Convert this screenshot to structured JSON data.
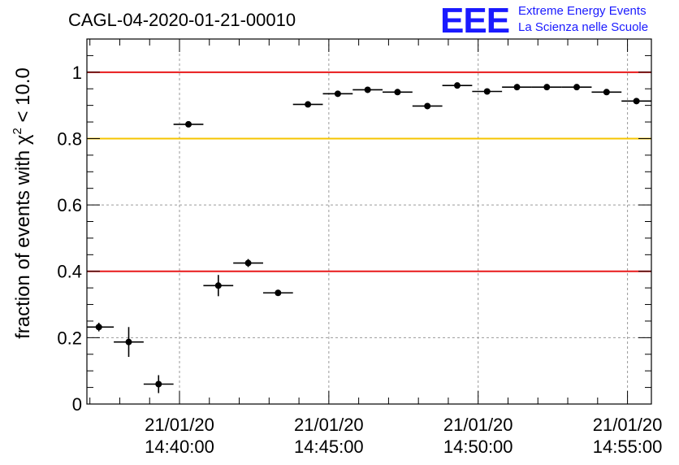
{
  "chart_data": {
    "type": "scatter",
    "title": "CAGL-04-2020-01-21-00010",
    "ylabel_main": "fraction of events with χ",
    "ylabel_sup": "2",
    "ylabel_tail": " < 10.0",
    "xlabel": "",
    "ylim": [
      0,
      1.1
    ],
    "yticks": [
      "0",
      "0.2",
      "0.4",
      "0.6",
      "0.8",
      "1"
    ],
    "ytick_values": [
      0,
      0.2,
      0.4,
      0.6,
      0.8,
      1.0
    ],
    "xticks": [
      {
        "date": "21/01/20",
        "time": "14:40:00"
      },
      {
        "date": "21/01/20",
        "time": "14:45:00"
      },
      {
        "date": "21/01/20",
        "time": "14:50:00"
      },
      {
        "date": "21/01/20",
        "time": "14:55:00"
      }
    ],
    "xtick_minutes": [
      40,
      45,
      50,
      55
    ],
    "xlim_minutes": [
      36.9,
      55.8
    ],
    "grid": true,
    "reference_lines": [
      {
        "y": 1.0,
        "color": "#e8191a"
      },
      {
        "y": 0.8,
        "color": "#f5c400"
      },
      {
        "y": 0.4,
        "color": "#e8191a"
      }
    ],
    "points": [
      {
        "x": 37.3,
        "y": 0.232,
        "xerr": 0.5,
        "yerr": 0.013
      },
      {
        "x": 38.3,
        "y": 0.187,
        "xerr": 0.5,
        "yerr": 0.045
      },
      {
        "x": 39.3,
        "y": 0.06,
        "xerr": 0.5,
        "yerr": 0.027
      },
      {
        "x": 40.3,
        "y": 0.843,
        "xerr": 0.5,
        "yerr": 0.007
      },
      {
        "x": 41.3,
        "y": 0.357,
        "xerr": 0.5,
        "yerr": 0.032
      },
      {
        "x": 42.3,
        "y": 0.425,
        "xerr": 0.5,
        "yerr": 0.012
      },
      {
        "x": 43.3,
        "y": 0.335,
        "xerr": 0.5,
        "yerr": 0.006
      },
      {
        "x": 44.3,
        "y": 0.903,
        "xerr": 0.5,
        "yerr": 0.006
      },
      {
        "x": 45.3,
        "y": 0.935,
        "xerr": 0.5,
        "yerr": 0.005
      },
      {
        "x": 46.3,
        "y": 0.947,
        "xerr": 0.5,
        "yerr": 0.005
      },
      {
        "x": 47.3,
        "y": 0.94,
        "xerr": 0.5,
        "yerr": 0.005
      },
      {
        "x": 48.3,
        "y": 0.898,
        "xerr": 0.5,
        "yerr": 0.006
      },
      {
        "x": 49.3,
        "y": 0.96,
        "xerr": 0.5,
        "yerr": 0.004
      },
      {
        "x": 50.3,
        "y": 0.942,
        "xerr": 0.5,
        "yerr": 0.005
      },
      {
        "x": 51.3,
        "y": 0.955,
        "xerr": 0.5,
        "yerr": 0.004
      },
      {
        "x": 52.3,
        "y": 0.955,
        "xerr": 0.5,
        "yerr": 0.004
      },
      {
        "x": 53.3,
        "y": 0.955,
        "xerr": 0.5,
        "yerr": 0.004
      },
      {
        "x": 54.3,
        "y": 0.94,
        "xerr": 0.5,
        "yerr": 0.005
      },
      {
        "x": 55.3,
        "y": 0.913,
        "xerr": 0.5,
        "yerr": 0.006
      }
    ]
  },
  "logo": {
    "letters": "EEE",
    "line1": "Extreme Energy Events",
    "line2": "La Scienza nelle Scuole",
    "color": "#1a1aff"
  }
}
